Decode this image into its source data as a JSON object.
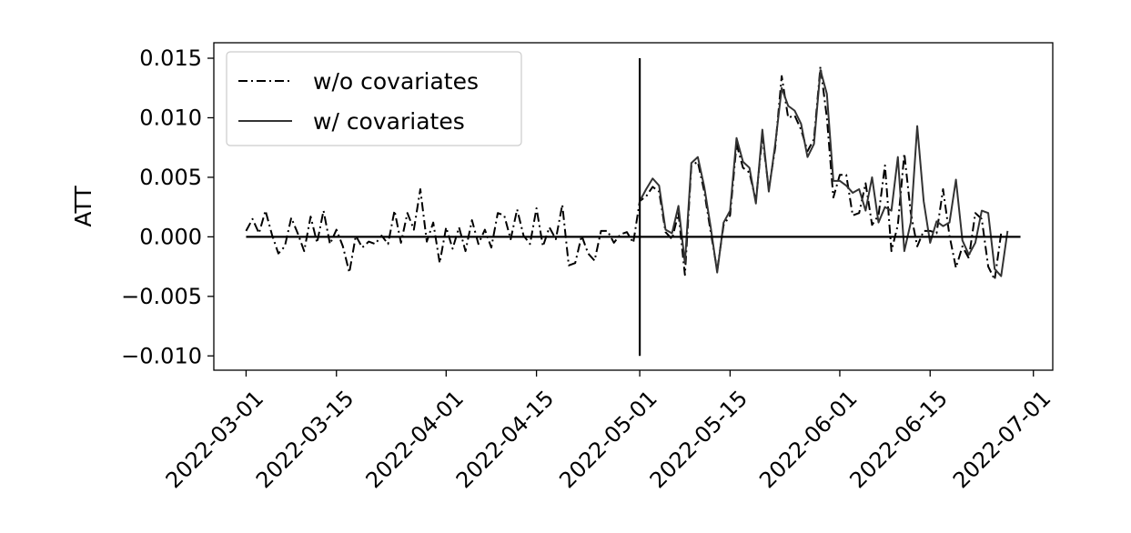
{
  "chart_data": {
    "type": "line",
    "title": "",
    "xlabel": "",
    "ylabel": "ATT",
    "ylim": [
      -0.0112,
      0.0163
    ],
    "xlim": [
      "2022-02-24",
      "2022-07-04"
    ],
    "x_ticks": [
      "2022-03-01",
      "2022-03-15",
      "2022-04-01",
      "2022-04-15",
      "2022-05-01",
      "2022-05-15",
      "2022-06-01",
      "2022-06-15",
      "2022-07-01"
    ],
    "y_ticks": [
      0.015,
      0.01,
      0.005,
      0.0,
      -0.005,
      -0.01
    ],
    "y_tick_labels": [
      "0.015",
      "0.010",
      "0.005",
      "0.000",
      "−0.005",
      "−0.010"
    ],
    "grid": false,
    "legend_position": "top-left",
    "reference_lines": {
      "horizontal_y": 0.0,
      "horizontal_x_range": [
        "2022-03-01",
        "2022-06-29"
      ],
      "vertical_x": "2022-05-01",
      "vertical_y_range": [
        -0.01,
        0.015
      ]
    },
    "series": [
      {
        "name": "w/o covariates",
        "style": "dash-dot",
        "color": "#000000",
        "points": [
          [
            "2022-03-01",
            0.0005
          ],
          [
            "2022-03-02",
            0.0015
          ],
          [
            "2022-03-03",
            0.0003
          ],
          [
            "2022-03-04",
            0.0022
          ],
          [
            "2022-03-05",
            0.0002
          ],
          [
            "2022-03-06",
            -0.0014
          ],
          [
            "2022-03-07",
            -0.0008
          ],
          [
            "2022-03-08",
            0.0016
          ],
          [
            "2022-03-09",
            0.0003
          ],
          [
            "2022-03-10",
            -0.0012
          ],
          [
            "2022-03-11",
            0.0017
          ],
          [
            "2022-03-12",
            -0.0005
          ],
          [
            "2022-03-13",
            0.0022
          ],
          [
            "2022-03-14",
            -0.0006
          ],
          [
            "2022-03-15",
            0.0006
          ],
          [
            "2022-03-16",
            -0.0008
          ],
          [
            "2022-03-17",
            -0.003
          ],
          [
            "2022-03-18",
            0.0001
          ],
          [
            "2022-03-19",
            -0.0009
          ],
          [
            "2022-03-20",
            -0.0004
          ],
          [
            "2022-03-21",
            -0.0006
          ],
          [
            "2022-03-22",
            0.0001
          ],
          [
            "2022-03-23",
            -0.0006
          ],
          [
            "2022-03-24",
            0.0022
          ],
          [
            "2022-03-25",
            -0.0005
          ],
          [
            "2022-03-26",
            0.002
          ],
          [
            "2022-03-27",
            0.0006
          ],
          [
            "2022-03-28",
            0.004
          ],
          [
            "2022-03-29",
            -0.0004
          ],
          [
            "2022-03-30",
            0.0012
          ],
          [
            "2022-03-31",
            -0.0022
          ],
          [
            "2022-04-01",
            0.0008
          ],
          [
            "2022-04-02",
            -0.001
          ],
          [
            "2022-04-03",
            0.0008
          ],
          [
            "2022-04-04",
            -0.0012
          ],
          [
            "2022-04-05",
            0.0014
          ],
          [
            "2022-04-06",
            -0.0006
          ],
          [
            "2022-04-07",
            0.0006
          ],
          [
            "2022-04-08",
            -0.0009
          ],
          [
            "2022-04-09",
            0.002
          ],
          [
            "2022-04-10",
            0.0018
          ],
          [
            "2022-04-11",
            -0.0002
          ],
          [
            "2022-04-12",
            0.0023
          ],
          [
            "2022-04-13",
            0.0001
          ],
          [
            "2022-04-14",
            -0.0006
          ],
          [
            "2022-04-15",
            0.0024
          ],
          [
            "2022-04-16",
            -0.0008
          ],
          [
            "2022-04-17",
            0.0008
          ],
          [
            "2022-04-18",
            -0.0002
          ],
          [
            "2022-04-19",
            0.0027
          ],
          [
            "2022-04-20",
            -0.0024
          ],
          [
            "2022-04-21",
            -0.0022
          ],
          [
            "2022-04-22",
            0.0001
          ],
          [
            "2022-04-23",
            -0.0014
          ],
          [
            "2022-04-24",
            -0.002
          ],
          [
            "2022-04-25",
            0.0005
          ],
          [
            "2022-04-26",
            0.0005
          ],
          [
            "2022-04-27",
            -0.0005
          ],
          [
            "2022-04-28",
            0.0002
          ],
          [
            "2022-04-29",
            0.0004
          ],
          [
            "2022-04-30",
            -0.0005
          ],
          [
            "2022-05-01",
            0.003
          ],
          [
            "2022-05-02",
            0.0034
          ],
          [
            "2022-05-03",
            0.0042
          ],
          [
            "2022-05-04",
            0.0038
          ],
          [
            "2022-05-05",
            0.0004
          ],
          [
            "2022-05-06",
            -0.0002
          ],
          [
            "2022-05-07",
            0.002
          ],
          [
            "2022-05-08",
            -0.0032
          ],
          [
            "2022-05-09",
            0.006
          ],
          [
            "2022-05-10",
            0.0063
          ],
          [
            "2022-05-11",
            0.0038
          ],
          [
            "2022-05-12",
            0.0004
          ],
          [
            "2022-05-13",
            -0.0028
          ],
          [
            "2022-05-14",
            0.001
          ],
          [
            "2022-05-15",
            0.0018
          ],
          [
            "2022-05-16",
            0.0078
          ],
          [
            "2022-05-17",
            0.0058
          ],
          [
            "2022-05-18",
            0.0054
          ],
          [
            "2022-05-19",
            0.003
          ],
          [
            "2022-05-20",
            0.0085
          ],
          [
            "2022-05-21",
            0.004
          ],
          [
            "2022-05-22",
            0.0075
          ],
          [
            "2022-05-23",
            0.0135
          ],
          [
            "2022-05-24",
            0.01
          ],
          [
            "2022-05-25",
            0.0102
          ],
          [
            "2022-05-26",
            0.009
          ],
          [
            "2022-05-27",
            0.0072
          ],
          [
            "2022-05-28",
            0.0082
          ],
          [
            "2022-05-29",
            0.0143
          ],
          [
            "2022-05-30",
            0.01
          ],
          [
            "2022-05-31",
            0.0033
          ],
          [
            "2022-06-01",
            0.0052
          ],
          [
            "2022-06-02",
            0.0052
          ],
          [
            "2022-06-03",
            0.0018
          ],
          [
            "2022-06-04",
            0.002
          ],
          [
            "2022-06-05",
            0.0045
          ],
          [
            "2022-06-06",
            0.001
          ],
          [
            "2022-06-07",
            0.0018
          ],
          [
            "2022-06-08",
            0.006
          ],
          [
            "2022-06-09",
            -0.0012
          ],
          [
            "2022-06-10",
            0.001
          ],
          [
            "2022-06-11",
            0.007
          ],
          [
            "2022-06-12",
            0.002
          ],
          [
            "2022-06-13",
            -0.0008
          ],
          [
            "2022-06-14",
            0.0005
          ],
          [
            "2022-06-15",
            0.0005
          ],
          [
            "2022-06-16",
            0.0003
          ],
          [
            "2022-06-17",
            0.004
          ],
          [
            "2022-06-18",
            0.0001
          ],
          [
            "2022-06-19",
            -0.0026
          ],
          [
            "2022-06-20",
            -0.0008
          ],
          [
            "2022-06-21",
            -0.0018
          ],
          [
            "2022-06-22",
            0.002
          ],
          [
            "2022-06-23",
            0.0015
          ],
          [
            "2022-06-24",
            -0.0025
          ],
          [
            "2022-06-25",
            -0.0036
          ],
          [
            "2022-06-26",
            0.0003
          ]
        ]
      },
      {
        "name": "w/ covariates",
        "style": "solid",
        "color": "#333333",
        "points": [
          [
            "2022-05-01",
            0.003
          ],
          [
            "2022-05-02",
            0.004
          ],
          [
            "2022-05-03",
            0.0049
          ],
          [
            "2022-05-04",
            0.0043
          ],
          [
            "2022-05-05",
            0.0006
          ],
          [
            "2022-05-06",
            0.0003
          ],
          [
            "2022-05-07",
            0.0026
          ],
          [
            "2022-05-08",
            -0.0022
          ],
          [
            "2022-05-09",
            0.0062
          ],
          [
            "2022-05-10",
            0.0067
          ],
          [
            "2022-05-11",
            0.0042
          ],
          [
            "2022-05-12",
            0.0008
          ],
          [
            "2022-05-13",
            -0.003
          ],
          [
            "2022-05-14",
            0.0012
          ],
          [
            "2022-05-15",
            0.0022
          ],
          [
            "2022-05-16",
            0.0083
          ],
          [
            "2022-05-17",
            0.0063
          ],
          [
            "2022-05-18",
            0.0058
          ],
          [
            "2022-05-19",
            0.0028
          ],
          [
            "2022-05-20",
            0.009
          ],
          [
            "2022-05-21",
            0.0038
          ],
          [
            "2022-05-22",
            0.0078
          ],
          [
            "2022-05-23",
            0.0125
          ],
          [
            "2022-05-24",
            0.011
          ],
          [
            "2022-05-25",
            0.0106
          ],
          [
            "2022-05-26",
            0.0095
          ],
          [
            "2022-05-27",
            0.0067
          ],
          [
            "2022-05-28",
            0.0078
          ],
          [
            "2022-05-29",
            0.014
          ],
          [
            "2022-05-30",
            0.012
          ],
          [
            "2022-05-31",
            0.0047
          ],
          [
            "2022-06-01",
            0.0047
          ],
          [
            "2022-06-02",
            0.0043
          ],
          [
            "2022-06-03",
            0.0037
          ],
          [
            "2022-06-04",
            0.004
          ],
          [
            "2022-06-05",
            0.0022
          ],
          [
            "2022-06-06",
            0.005
          ],
          [
            "2022-06-07",
            0.0012
          ],
          [
            "2022-06-08",
            0.0025
          ],
          [
            "2022-06-09",
            0.0022
          ],
          [
            "2022-06-10",
            0.0067
          ],
          [
            "2022-06-11",
            -0.0012
          ],
          [
            "2022-06-12",
            0.0012
          ],
          [
            "2022-06-13",
            0.0093
          ],
          [
            "2022-06-14",
            0.003
          ],
          [
            "2022-06-15",
            -0.0005
          ],
          [
            "2022-06-16",
            0.0013
          ],
          [
            "2022-06-17",
            0.0009
          ],
          [
            "2022-06-18",
            0.0012
          ],
          [
            "2022-06-19",
            0.0048
          ],
          [
            "2022-06-20",
            -0.0003
          ],
          [
            "2022-06-21",
            -0.0015
          ],
          [
            "2022-06-22",
            -0.0005
          ],
          [
            "2022-06-23",
            0.0022
          ],
          [
            "2022-06-24",
            0.002
          ],
          [
            "2022-06-25",
            -0.0027
          ],
          [
            "2022-06-26",
            -0.0033
          ],
          [
            "2022-06-27",
            0.0005
          ]
        ]
      }
    ]
  }
}
